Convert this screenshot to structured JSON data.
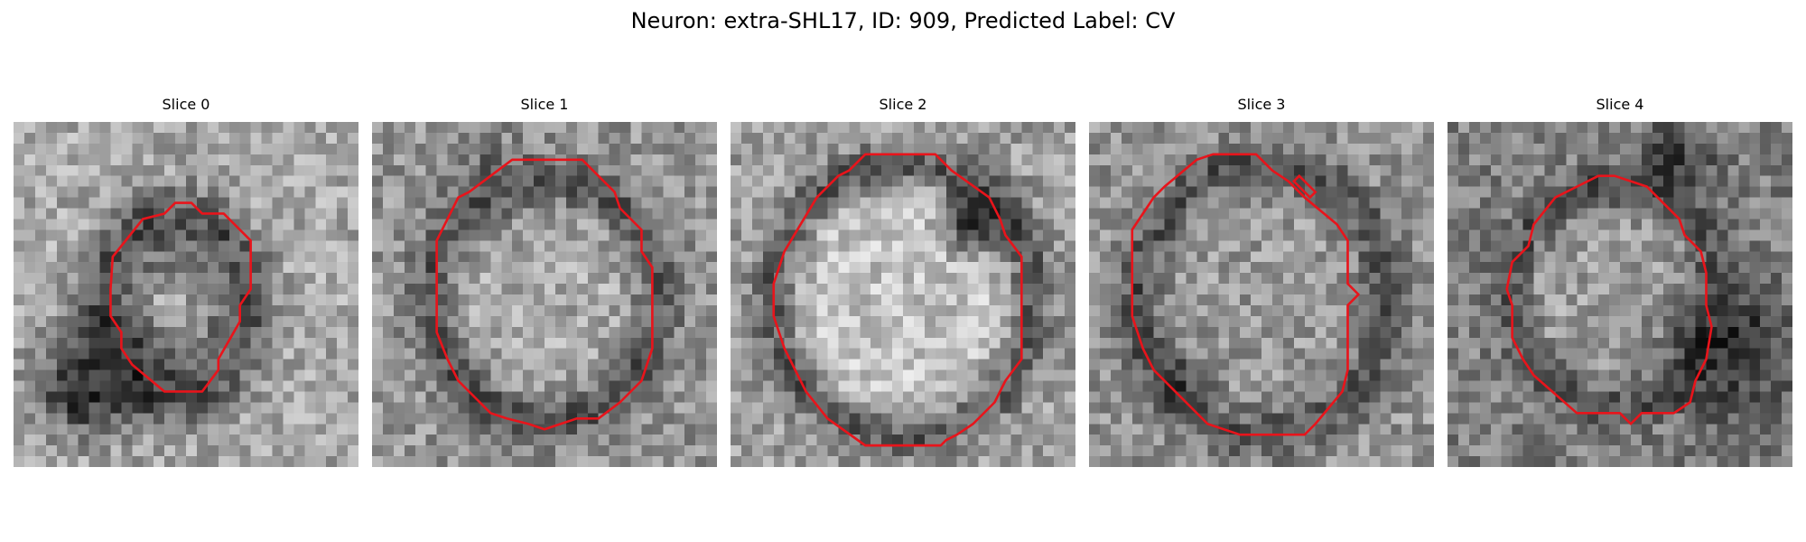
{
  "figure": {
    "title": "Neuron: extra-SHL17, ID: 909, Predicted Label: CV"
  },
  "contour_color": "#e8141b",
  "slices": [
    {
      "title": "Slice 0"
    },
    {
      "title": "Slice 1"
    },
    {
      "title": "Slice 2"
    },
    {
      "title": "Slice 3"
    },
    {
      "title": "Slice 4"
    }
  ]
}
